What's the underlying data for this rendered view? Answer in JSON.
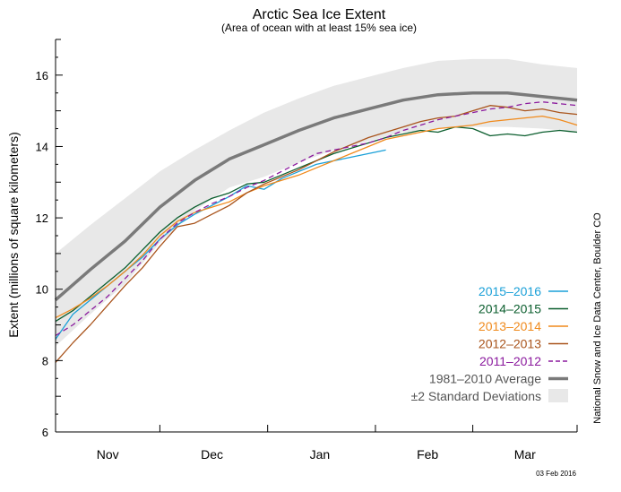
{
  "chart_data": {
    "type": "line",
    "title": "Arctic Sea Ice Extent",
    "subtitle": "(Area of ocean with at least 15% sea ice)",
    "ylabel": "Extent (millions of square kilometers)",
    "xlabel": "",
    "ylim": [
      6,
      17
    ],
    "xlim": [
      0,
      150
    ],
    "y_ticks": [
      6,
      8,
      10,
      12,
      14,
      16
    ],
    "x_month_labels": [
      {
        "label": "Nov",
        "x": 15
      },
      {
        "label": "Dec",
        "x": 45
      },
      {
        "label": "Jan",
        "x": 76
      },
      {
        "label": "Feb",
        "x": 107
      },
      {
        "label": "Mar",
        "x": 135
      }
    ],
    "x_month_boundaries": [
      0,
      30,
      61,
      92,
      120,
      150
    ],
    "grid": false,
    "legend_position": "bottom-right",
    "average": {
      "name": "1981–2010 Average",
      "color": "#7a7a7a",
      "x": [
        0,
        10,
        20,
        30,
        40,
        50,
        60,
        70,
        80,
        90,
        100,
        110,
        120,
        130,
        140,
        150
      ],
      "y": [
        9.7,
        10.55,
        11.35,
        12.3,
        13.05,
        13.65,
        14.05,
        14.45,
        14.8,
        15.05,
        15.3,
        15.45,
        15.5,
        15.5,
        15.4,
        15.3
      ]
    },
    "std_band": {
      "name": "±2 Standard Deviations",
      "color": "#e8e8e8",
      "x": [
        0,
        10,
        20,
        30,
        40,
        50,
        60,
        70,
        80,
        90,
        100,
        110,
        120,
        130,
        140,
        150
      ],
      "upper": [
        11.0,
        11.8,
        12.55,
        13.3,
        13.9,
        14.45,
        14.95,
        15.35,
        15.7,
        15.95,
        16.2,
        16.4,
        16.45,
        16.45,
        16.3,
        16.2
      ],
      "lower": [
        8.4,
        9.3,
        10.15,
        11.3,
        12.2,
        12.85,
        13.15,
        13.55,
        13.9,
        14.15,
        14.4,
        14.5,
        14.55,
        14.55,
        14.5,
        14.4
      ]
    },
    "series": [
      {
        "name": "2015–2016",
        "color": "#1aa0d8",
        "dash": false,
        "x": [
          0,
          5,
          10,
          15,
          20,
          25,
          30,
          35,
          40,
          45,
          50,
          55,
          60,
          65,
          70,
          75,
          80,
          85,
          90,
          95
        ],
        "y": [
          8.6,
          9.3,
          9.7,
          10.1,
          10.5,
          10.9,
          11.4,
          11.8,
          12.1,
          12.35,
          12.6,
          12.9,
          12.8,
          13.1,
          13.3,
          13.5,
          13.6,
          13.7,
          13.8,
          13.9
        ]
      },
      {
        "name": "2014–2015",
        "color": "#0b5e2e",
        "dash": false,
        "x": [
          0,
          5,
          10,
          15,
          20,
          25,
          30,
          35,
          40,
          45,
          50,
          55,
          60,
          65,
          70,
          75,
          80,
          85,
          90,
          95,
          100,
          105,
          110,
          115,
          120,
          125,
          130,
          135,
          140,
          145,
          150
        ],
        "y": [
          9.1,
          9.4,
          9.8,
          10.2,
          10.6,
          11.1,
          11.6,
          12.0,
          12.3,
          12.55,
          12.7,
          12.95,
          13.0,
          13.2,
          13.4,
          13.6,
          13.8,
          13.95,
          14.1,
          14.25,
          14.35,
          14.45,
          14.4,
          14.55,
          14.5,
          14.3,
          14.35,
          14.3,
          14.4,
          14.45,
          14.4
        ]
      },
      {
        "name": "2013–2014",
        "color": "#f08a1c",
        "dash": false,
        "x": [
          0,
          5,
          10,
          15,
          20,
          25,
          30,
          35,
          40,
          45,
          50,
          55,
          60,
          65,
          70,
          75,
          80,
          85,
          90,
          95,
          100,
          105,
          110,
          115,
          120,
          125,
          130,
          135,
          140,
          145,
          150
        ],
        "y": [
          9.2,
          9.45,
          9.75,
          10.1,
          10.5,
          10.95,
          11.5,
          11.9,
          12.15,
          12.3,
          12.45,
          12.7,
          12.9,
          13.05,
          13.2,
          13.4,
          13.6,
          13.8,
          14.0,
          14.2,
          14.3,
          14.4,
          14.5,
          14.55,
          14.6,
          14.7,
          14.75,
          14.8,
          14.85,
          14.75,
          14.6
        ]
      },
      {
        "name": "2012–2013",
        "color": "#a9541c",
        "dash": false,
        "x": [
          0,
          5,
          10,
          15,
          20,
          25,
          30,
          35,
          40,
          45,
          50,
          55,
          60,
          65,
          70,
          75,
          80,
          85,
          90,
          95,
          100,
          105,
          110,
          115,
          120,
          125,
          130,
          135,
          140,
          145,
          150
        ],
        "y": [
          7.95,
          8.5,
          9.0,
          9.55,
          10.1,
          10.6,
          11.2,
          11.75,
          11.85,
          12.1,
          12.35,
          12.7,
          12.95,
          13.15,
          13.35,
          13.6,
          13.85,
          14.05,
          14.25,
          14.4,
          14.55,
          14.7,
          14.8,
          14.85,
          15.0,
          15.15,
          15.1,
          15.0,
          15.05,
          14.95,
          14.9
        ]
      },
      {
        "name": "2011–2012",
        "color": "#8b1a9e",
        "dash": true,
        "x": [
          0,
          5,
          10,
          15,
          20,
          25,
          30,
          35,
          40,
          45,
          50,
          55,
          60,
          65,
          70,
          75,
          80,
          85,
          90,
          95,
          100,
          105,
          110,
          115,
          120,
          125,
          130,
          135,
          140,
          145,
          150
        ],
        "y": [
          8.7,
          9.0,
          9.4,
          9.8,
          10.3,
          10.8,
          11.4,
          11.85,
          12.15,
          12.4,
          12.6,
          12.85,
          13.05,
          13.3,
          13.55,
          13.8,
          13.9,
          14.0,
          14.1,
          14.25,
          14.45,
          14.6,
          14.75,
          14.85,
          14.95,
          15.05,
          15.1,
          15.2,
          15.25,
          15.2,
          15.15
        ]
      }
    ]
  },
  "credit": "National Snow and Ice Data Center, Boulder CO",
  "date_stamp": "03 Feb 2016"
}
